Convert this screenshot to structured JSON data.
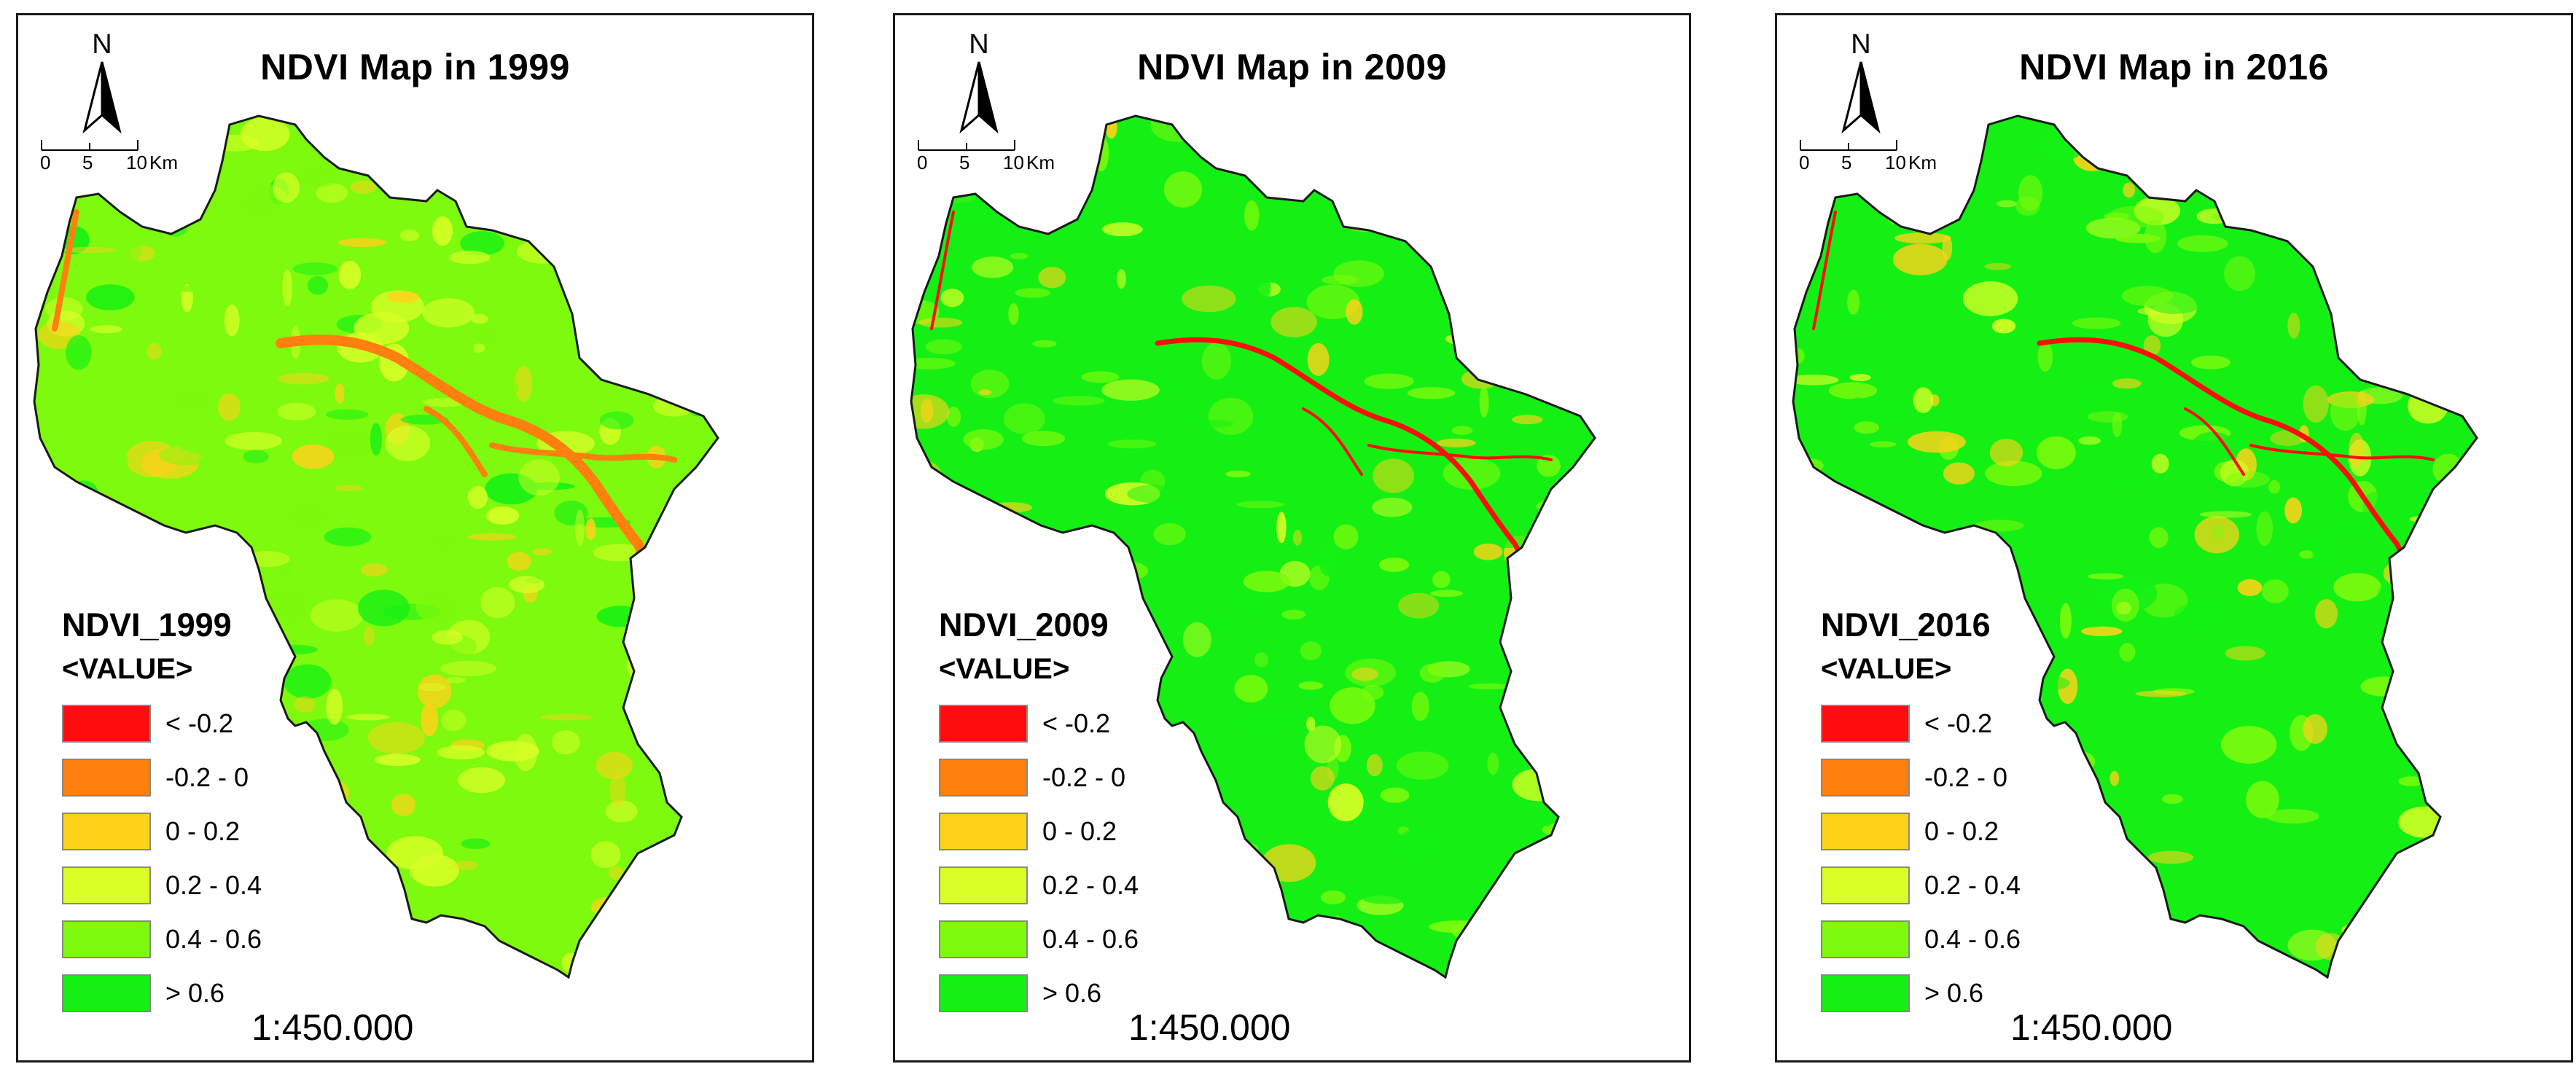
{
  "colors": {
    "lt_neg02": "#ff0d0d",
    "neg02_0": "#ff7f0f",
    "p0_02": "#ffd21a",
    "p02_04": "#d9ff26",
    "p04_06": "#7dfa0d",
    "gt06": "#14f014",
    "outline": "#1a1a1a"
  },
  "panels": [
    {
      "title": "NDVI Map in 1999",
      "north_label": "N",
      "scale_ticks": [
        "0",
        "5",
        "10"
      ],
      "scale_unit": "Km",
      "legend_title": "NDVI_1999",
      "legend_subtitle": "<VALUE>",
      "classes": [
        {
          "label": "< -0.2",
          "color": "#ff0d0d"
        },
        {
          "label": "-0.2 - 0",
          "color": "#ff7f0f"
        },
        {
          "label": "0 - 0.2",
          "color": "#ffd21a"
        },
        {
          "label": "0.2 - 0.4",
          "color": "#d9ff26"
        },
        {
          "label": "0.4 - 0.6",
          "color": "#7dfa0d"
        },
        {
          "label": "> 0.6",
          "color": "#14f014"
        }
      ],
      "map_scale": "1:450.000"
    },
    {
      "title": "NDVI Map in 2009",
      "north_label": "N",
      "scale_ticks": [
        "0",
        "5",
        "10"
      ],
      "scale_unit": "Km",
      "legend_title": "NDVI_2009",
      "legend_subtitle": "<VALUE>",
      "classes": [
        {
          "label": "< -0.2",
          "color": "#ff0d0d"
        },
        {
          "label": "-0.2 - 0",
          "color": "#ff7f0f"
        },
        {
          "label": "0 - 0.2",
          "color": "#ffd21a"
        },
        {
          "label": "0.2 - 0.4",
          "color": "#d9ff26"
        },
        {
          "label": "0.4 - 0.6",
          "color": "#7dfa0d"
        },
        {
          "label": "> 0.6",
          "color": "#14f014"
        }
      ],
      "map_scale": "1:450.000"
    },
    {
      "title": "NDVI Map in 2016",
      "north_label": "N",
      "scale_ticks": [
        "0",
        "5",
        "10"
      ],
      "scale_unit": "Km",
      "legend_title": "NDVI_2016",
      "legend_subtitle": "<VALUE>",
      "classes": [
        {
          "label": "< -0.2",
          "color": "#ff0d0d"
        },
        {
          "label": "-0.2 - 0",
          "color": "#ff7f0f"
        },
        {
          "label": "0 - 0.2",
          "color": "#ffd21a"
        },
        {
          "label": "0.2 - 0.4",
          "color": "#d9ff26"
        },
        {
          "label": "0.4 - 0.6",
          "color": "#7dfa0d"
        },
        {
          "label": "> 0.6",
          "color": "#14f014"
        }
      ],
      "map_scale": "1:450.000"
    }
  ]
}
